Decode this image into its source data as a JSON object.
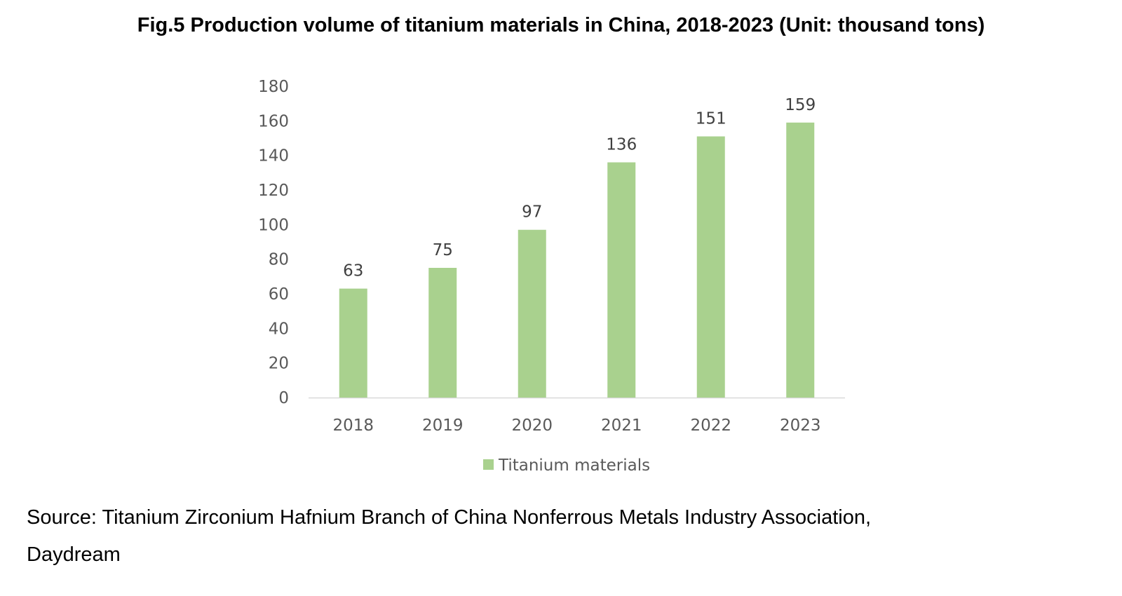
{
  "figure": {
    "title": "Fig.5 Production volume of titanium materials in China, 2018-2023 (Unit: thousand tons)",
    "source_line1": "Source: Titanium Zirconium Hafnium Branch of China Nonferrous Metals Industry Association,",
    "source_line2": "Daydream"
  },
  "chart_data": {
    "type": "bar",
    "categories": [
      "2018",
      "2019",
      "2020",
      "2021",
      "2022",
      "2023"
    ],
    "series": [
      {
        "name": "Titanium materials",
        "values": [
          63,
          75,
          97,
          136,
          151,
          159
        ],
        "color": "#a9d18e"
      }
    ],
    "ylim": [
      0,
      180
    ],
    "yticks": [
      0,
      20,
      40,
      60,
      80,
      100,
      120,
      140,
      160,
      180
    ],
    "grid": false,
    "legend": "bottom-center",
    "data_labels": true
  }
}
